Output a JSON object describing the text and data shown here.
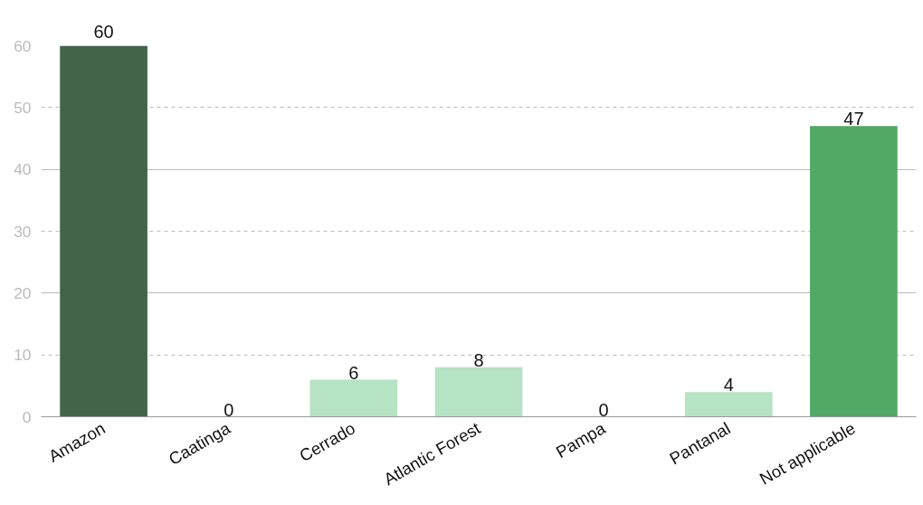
{
  "chart_data": {
    "type": "bar",
    "categories": [
      "Amazon",
      "Caatinga",
      "Cerrado",
      "Atlantic Forest",
      "Pampa",
      "Pantanal",
      "Not applicable"
    ],
    "values": [
      60,
      0,
      6,
      8,
      0,
      4,
      47
    ],
    "colors": [
      "#44644a",
      "#b5e3c3",
      "#b5e3c3",
      "#b5e3c3",
      "#b5e3c3",
      "#b5e3c3",
      "#52a865"
    ],
    "ylim": [
      0,
      60
    ],
    "yticks": [
      0,
      10,
      20,
      30,
      40,
      50,
      60
    ],
    "grid": "y",
    "data_labels": true
  }
}
